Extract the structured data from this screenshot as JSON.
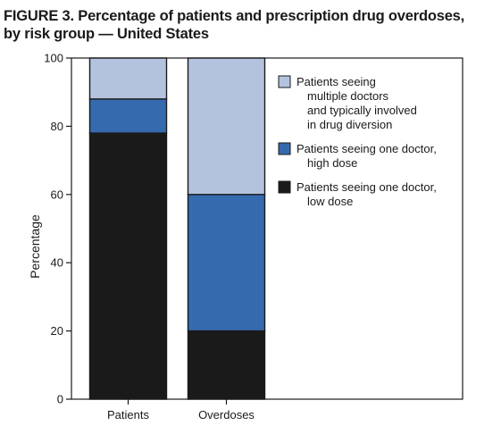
{
  "title_line1": "FIGURE 3. Percentage of patients and prescription drug overdoses,",
  "title_line2": "by risk group — United States",
  "chart_data": {
    "type": "bar",
    "stacked": true,
    "categories": [
      "Patients",
      "Overdoses"
    ],
    "series": [
      {
        "name_lines": [
          "Patients seeing one doctor,",
          "low dose"
        ],
        "color": "#1a1a1a",
        "values": [
          78,
          20
        ]
      },
      {
        "name_lines": [
          "Patients seeing one doctor,",
          "high dose"
        ],
        "color": "#356aae",
        "values": [
          10,
          40
        ]
      },
      {
        "name_lines": [
          "Patients seeing",
          "multiple doctors",
          "and typically involved",
          "in drug diversion"
        ],
        "color": "#b4c3dd",
        "values": [
          12,
          40
        ]
      }
    ],
    "ylabel": "Percentage",
    "xlabel": "",
    "ylim": [
      0,
      100
    ],
    "yticks": [
      0,
      20,
      40,
      60,
      80,
      100
    ],
    "legend_position": "top-right",
    "legend_order": [
      2,
      1,
      0
    ],
    "grid": false
  }
}
